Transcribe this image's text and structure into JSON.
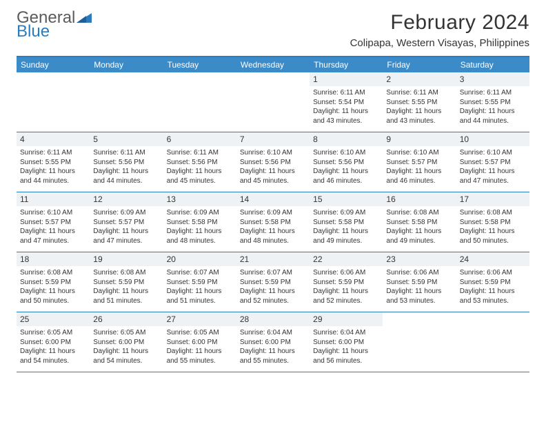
{
  "logo": {
    "line1": "General",
    "line2": "Blue"
  },
  "title": "February 2024",
  "location": "Colipapa, Western Visayas, Philippines",
  "colors": {
    "header_bar": "#3c8bc9",
    "rule": "#2b7bbf",
    "daynum_bg": "#eef2f5",
    "text": "#333333",
    "logo_gray": "#5b5b5b",
    "logo_blue": "#2b7bbf",
    "background": "#ffffff"
  },
  "fonts": {
    "title_size": 30,
    "location_size": 15,
    "dayhead_size": 12,
    "cell_size": 10
  },
  "day_names": [
    "Sunday",
    "Monday",
    "Tuesday",
    "Wednesday",
    "Thursday",
    "Friday",
    "Saturday"
  ],
  "weeks": [
    [
      null,
      null,
      null,
      null,
      {
        "n": "1",
        "sr": "Sunrise: 6:11 AM",
        "ss": "Sunset: 5:54 PM",
        "dl": "Daylight: 11 hours and 43 minutes."
      },
      {
        "n": "2",
        "sr": "Sunrise: 6:11 AM",
        "ss": "Sunset: 5:55 PM",
        "dl": "Daylight: 11 hours and 43 minutes."
      },
      {
        "n": "3",
        "sr": "Sunrise: 6:11 AM",
        "ss": "Sunset: 5:55 PM",
        "dl": "Daylight: 11 hours and 44 minutes."
      }
    ],
    [
      {
        "n": "4",
        "sr": "Sunrise: 6:11 AM",
        "ss": "Sunset: 5:55 PM",
        "dl": "Daylight: 11 hours and 44 minutes."
      },
      {
        "n": "5",
        "sr": "Sunrise: 6:11 AM",
        "ss": "Sunset: 5:56 PM",
        "dl": "Daylight: 11 hours and 44 minutes."
      },
      {
        "n": "6",
        "sr": "Sunrise: 6:11 AM",
        "ss": "Sunset: 5:56 PM",
        "dl": "Daylight: 11 hours and 45 minutes."
      },
      {
        "n": "7",
        "sr": "Sunrise: 6:10 AM",
        "ss": "Sunset: 5:56 PM",
        "dl": "Daylight: 11 hours and 45 minutes."
      },
      {
        "n": "8",
        "sr": "Sunrise: 6:10 AM",
        "ss": "Sunset: 5:56 PM",
        "dl": "Daylight: 11 hours and 46 minutes."
      },
      {
        "n": "9",
        "sr": "Sunrise: 6:10 AM",
        "ss": "Sunset: 5:57 PM",
        "dl": "Daylight: 11 hours and 46 minutes."
      },
      {
        "n": "10",
        "sr": "Sunrise: 6:10 AM",
        "ss": "Sunset: 5:57 PM",
        "dl": "Daylight: 11 hours and 47 minutes."
      }
    ],
    [
      {
        "n": "11",
        "sr": "Sunrise: 6:10 AM",
        "ss": "Sunset: 5:57 PM",
        "dl": "Daylight: 11 hours and 47 minutes."
      },
      {
        "n": "12",
        "sr": "Sunrise: 6:09 AM",
        "ss": "Sunset: 5:57 PM",
        "dl": "Daylight: 11 hours and 47 minutes."
      },
      {
        "n": "13",
        "sr": "Sunrise: 6:09 AM",
        "ss": "Sunset: 5:58 PM",
        "dl": "Daylight: 11 hours and 48 minutes."
      },
      {
        "n": "14",
        "sr": "Sunrise: 6:09 AM",
        "ss": "Sunset: 5:58 PM",
        "dl": "Daylight: 11 hours and 48 minutes."
      },
      {
        "n": "15",
        "sr": "Sunrise: 6:09 AM",
        "ss": "Sunset: 5:58 PM",
        "dl": "Daylight: 11 hours and 49 minutes."
      },
      {
        "n": "16",
        "sr": "Sunrise: 6:08 AM",
        "ss": "Sunset: 5:58 PM",
        "dl": "Daylight: 11 hours and 49 minutes."
      },
      {
        "n": "17",
        "sr": "Sunrise: 6:08 AM",
        "ss": "Sunset: 5:58 PM",
        "dl": "Daylight: 11 hours and 50 minutes."
      }
    ],
    [
      {
        "n": "18",
        "sr": "Sunrise: 6:08 AM",
        "ss": "Sunset: 5:59 PM",
        "dl": "Daylight: 11 hours and 50 minutes."
      },
      {
        "n": "19",
        "sr": "Sunrise: 6:08 AM",
        "ss": "Sunset: 5:59 PM",
        "dl": "Daylight: 11 hours and 51 minutes."
      },
      {
        "n": "20",
        "sr": "Sunrise: 6:07 AM",
        "ss": "Sunset: 5:59 PM",
        "dl": "Daylight: 11 hours and 51 minutes."
      },
      {
        "n": "21",
        "sr": "Sunrise: 6:07 AM",
        "ss": "Sunset: 5:59 PM",
        "dl": "Daylight: 11 hours and 52 minutes."
      },
      {
        "n": "22",
        "sr": "Sunrise: 6:06 AM",
        "ss": "Sunset: 5:59 PM",
        "dl": "Daylight: 11 hours and 52 minutes."
      },
      {
        "n": "23",
        "sr": "Sunrise: 6:06 AM",
        "ss": "Sunset: 5:59 PM",
        "dl": "Daylight: 11 hours and 53 minutes."
      },
      {
        "n": "24",
        "sr": "Sunrise: 6:06 AM",
        "ss": "Sunset: 5:59 PM",
        "dl": "Daylight: 11 hours and 53 minutes."
      }
    ],
    [
      {
        "n": "25",
        "sr": "Sunrise: 6:05 AM",
        "ss": "Sunset: 6:00 PM",
        "dl": "Daylight: 11 hours and 54 minutes."
      },
      {
        "n": "26",
        "sr": "Sunrise: 6:05 AM",
        "ss": "Sunset: 6:00 PM",
        "dl": "Daylight: 11 hours and 54 minutes."
      },
      {
        "n": "27",
        "sr": "Sunrise: 6:05 AM",
        "ss": "Sunset: 6:00 PM",
        "dl": "Daylight: 11 hours and 55 minutes."
      },
      {
        "n": "28",
        "sr": "Sunrise: 6:04 AM",
        "ss": "Sunset: 6:00 PM",
        "dl": "Daylight: 11 hours and 55 minutes."
      },
      {
        "n": "29",
        "sr": "Sunrise: 6:04 AM",
        "ss": "Sunset: 6:00 PM",
        "dl": "Daylight: 11 hours and 56 minutes."
      },
      null,
      null
    ]
  ]
}
